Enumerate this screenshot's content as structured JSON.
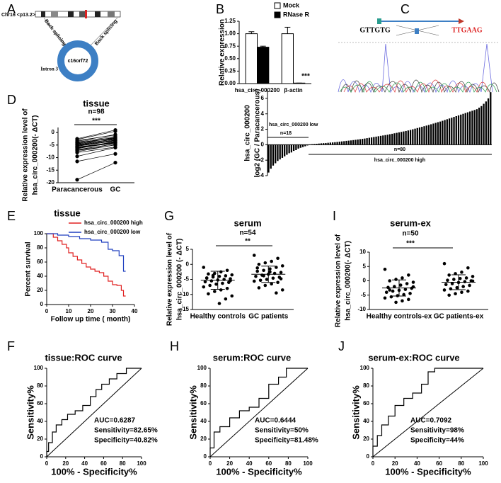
{
  "panel_labels": [
    "A",
    "B",
    "C",
    "D",
    "E",
    "G",
    "I",
    "F",
    "H",
    "J"
  ],
  "diagram_a": {
    "chromosome": "Chr16 <p13.2>",
    "back_splicing": [
      "Back splicing",
      "Back splicing"
    ],
    "intron": "Intron 3",
    "circ_name": "c16orf72"
  },
  "chromatogram_c": {
    "seq_left": "GTTGTG",
    "seq_right": "TTGAAG"
  },
  "chart_data": [
    {
      "type": "bar",
      "ylabel": [
        "Relative expression"
      ],
      "categories": [
        "hsa_circ_000200",
        "β-actin"
      ],
      "series": [
        {
          "name": "Mock",
          "color": "#ffffff",
          "values": [
            1.0,
            1.0
          ],
          "errors": [
            0.04,
            0.13
          ]
        },
        {
          "name": "RNase R",
          "color": "#000000",
          "values": [
            0.73,
            0.01
          ],
          "errors": [
            0.02,
            0
          ]
        }
      ],
      "ylim": [
        0,
        1.25
      ],
      "yticks": [
        {
          "value": 0,
          "label": "0.00"
        },
        {
          "value": 0.25,
          "label": "0.25"
        },
        {
          "value": 0.5,
          "label": "0.50"
        },
        {
          "value": 0.75,
          "label": "0.75"
        },
        {
          "value": 1,
          "label": "1.00"
        },
        {
          "value": 1.25,
          "label": "1.25"
        }
      ],
      "annotations": [
        "***"
      ]
    },
    {
      "type": "paired",
      "title": "tissue",
      "annotations": [
        "n=98",
        "***"
      ],
      "ylabel": [
        "Relative expression level of",
        "hsa_circ_000200(- ΔCT)"
      ],
      "categories": [
        "Paracancerous",
        "GC"
      ],
      "color": "#000000",
      "values": [
        [
          -3.2,
          -4.1,
          -5.0,
          -5.8,
          -6.5,
          -4.4,
          -3.8,
          -7.2,
          -5.5,
          -6.1,
          -4.9,
          -3.5,
          -8.0,
          -5.2,
          -6.8,
          -4.6,
          -2.8,
          -7.6,
          -5.9,
          -4.2,
          -6.3,
          -3.9,
          -5.4,
          -9.5,
          -11.5,
          -18.8,
          -2.5,
          -7.0,
          -4.8,
          -6.0
        ],
        [
          -1.0,
          -2.2,
          -3.1,
          -4.0,
          -3.5,
          -2.8,
          -1.5,
          -5.0,
          -3.3,
          -4.2,
          -2.5,
          -0.8,
          -5.8,
          -3.0,
          -4.6,
          -2.0,
          0.5,
          -4.9,
          -3.8,
          -1.9,
          -4.1,
          -2.4,
          -3.2,
          -6.0,
          -8.5,
          -12.0,
          1.0,
          -4.5,
          -2.7,
          -3.9
        ]
      ],
      "ylim": [
        -20,
        2
      ],
      "yticks": [
        0,
        -5,
        -10,
        -15,
        -20
      ]
    },
    {
      "type": "waterfall",
      "ylabel": [
        "hsa_circ_000200",
        "log2 (GC / Paracancerous)"
      ],
      "annotations": [
        "hsa_circ_000200 low",
        "n=18",
        "n=80",
        "hsa_circ_000200 high"
      ],
      "color": "#000000",
      "values": [
        -3.6,
        -3.1,
        -2.7,
        -2.4,
        -2.1,
        -1.9,
        -1.7,
        -1.5,
        -1.3,
        -1.1,
        -1.0,
        -0.8,
        -0.7,
        -0.5,
        -0.4,
        -0.3,
        -0.2,
        -0.1,
        0.05,
        0.08,
        0.1,
        0.12,
        0.15,
        0.18,
        0.2,
        0.22,
        0.25,
        0.28,
        0.3,
        0.33,
        0.36,
        0.4,
        0.43,
        0.46,
        0.5,
        0.53,
        0.56,
        0.6,
        0.64,
        0.68,
        0.72,
        0.76,
        0.8,
        0.85,
        0.9,
        0.95,
        1.0,
        1.05,
        1.1,
        1.15,
        1.2,
        1.25,
        1.3,
        1.36,
        1.42,
        1.48,
        1.54,
        1.6,
        1.66,
        1.72,
        1.78,
        1.85,
        1.92,
        2.0,
        2.08,
        2.16,
        2.24,
        2.32,
        2.4,
        2.48,
        2.56,
        2.65,
        2.74,
        2.83,
        2.92,
        3.0,
        3.1,
        3.2,
        3.3,
        3.4,
        3.5,
        3.6,
        3.7,
        3.8,
        3.9,
        4.0,
        4.1,
        4.2,
        4.3,
        4.4,
        4.5,
        4.6,
        4.8,
        5.0,
        5.3,
        5.6,
        6.0,
        6.8
      ],
      "ylim": [
        -4,
        7
      ],
      "yticks": [
        -4,
        -2,
        0,
        2,
        4,
        6
      ]
    },
    {
      "type": "line",
      "title": "tissue",
      "ylabel": [
        "Percent survival"
      ],
      "xlabel": "Follow up time ( month)",
      "series": [
        {
          "name": "hsa_circ_000200 high",
          "color": "#e02020",
          "x": [
            0,
            3,
            3,
            5,
            5,
            7,
            7,
            9,
            9,
            10,
            10,
            12,
            12,
            14,
            14,
            16,
            16,
            18,
            18,
            20,
            20,
            22,
            22,
            24,
            24,
            26,
            26,
            28,
            28,
            30,
            30,
            32,
            32,
            34,
            34,
            35,
            35,
            36
          ],
          "values": [
            100,
            100,
            95,
            95,
            90,
            90,
            85,
            85,
            80,
            80,
            73,
            73,
            68,
            68,
            63,
            63,
            58,
            58,
            53,
            53,
            50,
            50,
            47,
            47,
            45,
            45,
            40,
            40,
            33,
            33,
            28,
            28,
            27,
            27,
            20,
            20,
            12,
            12
          ]
        },
        {
          "name": "hsa_circ_000200 low",
          "color": "#1f3fbf",
          "x": [
            0,
            5,
            5,
            10,
            10,
            15,
            15,
            20,
            20,
            25,
            25,
            28,
            28,
            30,
            30,
            33,
            33,
            35,
            35,
            36
          ],
          "values": [
            100,
            100,
            98,
            98,
            96,
            96,
            93,
            93,
            91,
            91,
            88,
            88,
            78,
            78,
            76,
            76,
            69,
            69,
            47,
            47
          ]
        }
      ],
      "xlim": [
        0,
        40
      ],
      "xticks": [
        0,
        10,
        20,
        30,
        40
      ],
      "ylim": [
        0,
        100
      ],
      "yticks": [
        0,
        20,
        40,
        60,
        80,
        100
      ]
    },
    {
      "type": "strip",
      "title": "serum",
      "annotations": [
        "n=54",
        "**"
      ],
      "ylabel": [
        "Relative expression level of",
        "hsa_circ_000200 (- ΔCT)"
      ],
      "categories": [
        "Healthy controls",
        "GC patients"
      ],
      "color": "#000000",
      "values": [
        [
          -1,
          -2,
          -2.5,
          -3,
          -3.2,
          -3.5,
          -3.8,
          -4,
          -4.2,
          -4.5,
          -4.8,
          -5,
          -5.2,
          -5.5,
          -5.8,
          -6,
          -6.3,
          -6.6,
          -7,
          -7.5,
          -8,
          -8.5,
          -9,
          -9.8,
          -10.5,
          -11.5,
          -13,
          -3.7,
          -4.6,
          -5.4
        ],
        [
          3,
          2,
          1,
          0.5,
          0,
          -0.5,
          -1,
          -1.5,
          -2,
          -2.3,
          -2.7,
          -3,
          -3.3,
          -3.6,
          -4,
          -4.3,
          -4.6,
          -5,
          -5.3,
          -5.6,
          -6,
          -6.5,
          -7,
          -7.8,
          -8.5,
          -9.5,
          -2.5,
          -3.8,
          -1.2,
          -4.8
        ]
      ],
      "means": [
        -5.3,
        -3.3
      ],
      "sd": [
        3,
        2.7
      ],
      "ylim": [
        -15,
        5
      ],
      "yticks": [
        5,
        0,
        -5,
        -10,
        -15
      ]
    },
    {
      "type": "strip",
      "title": "serum-ex",
      "annotations": [
        "n=50",
        "***"
      ],
      "ylabel": [
        "Relative expression level of",
        "hsa_circ_000200(- ΔCT)"
      ],
      "categories": [
        "Healthy controls-ex",
        "GC patients-ex"
      ],
      "color": "#000000",
      "values": [
        [
          4,
          2,
          1,
          0.5,
          0,
          -0.5,
          -1,
          -1.5,
          -2,
          -2.3,
          -2.6,
          -3,
          -3.3,
          -3.6,
          -4,
          -4.4,
          -4.8,
          -5.2,
          -5.6,
          -6,
          -6.5,
          -7,
          -7.5,
          -3.2,
          -2.1
        ],
        [
          6,
          4.5,
          3,
          2.5,
          2,
          1.5,
          1,
          0.8,
          0.5,
          0.2,
          0,
          -0.3,
          -0.6,
          -1,
          -1.3,
          -1.6,
          -2,
          -2.4,
          -2.8,
          -3.2,
          -3.6,
          -4,
          -4.5,
          -5,
          -0.1
        ]
      ],
      "means": [
        -2.5,
        -0.5
      ],
      "sd": [
        2.8,
        2.6
      ],
      "ylim": [
        -10,
        10
      ],
      "yticks": [
        10,
        5,
        0,
        -5,
        -10
      ]
    },
    {
      "type": "line",
      "title": "tissue:ROC curve",
      "ylabel": [
        "Sensitivity%"
      ],
      "xlabel": "100% - Specificity%",
      "reference_line": true,
      "annotations": [
        "AUC=0.6287",
        "Sensitivity=82.65%",
        "Specificity=40.82%"
      ],
      "series": [
        {
          "color": "#000000",
          "x": [
            0,
            0,
            2,
            2,
            6,
            6,
            10,
            10,
            16,
            16,
            22,
            22,
            30,
            30,
            38,
            38,
            46,
            46,
            52,
            52,
            58,
            58,
            66,
            66,
            74,
            74,
            84,
            84,
            100
          ],
          "values": [
            0,
            6,
            6,
            16,
            16,
            28,
            28,
            36,
            36,
            42,
            42,
            48,
            48,
            52,
            52,
            58,
            58,
            68,
            68,
            76,
            76,
            82,
            82,
            88,
            88,
            94,
            94,
            100,
            100
          ]
        }
      ],
      "xlim": [
        0,
        100
      ],
      "xticks": [
        0,
        20,
        40,
        60,
        80,
        100
      ],
      "ylim": [
        0,
        100
      ],
      "yticks": [
        0,
        20,
        40,
        60,
        80,
        100
      ]
    },
    {
      "type": "line",
      "title": "serum:ROC curve",
      "ylabel": [
        "Sensitivity%"
      ],
      "xlabel": "100% - Specificity%",
      "reference_line": true,
      "annotations": [
        "AUC=0.6444",
        "Sensitivity=50%",
        "Specificity=81.48%"
      ],
      "series": [
        {
          "color": "#000000",
          "x": [
            0,
            0,
            4,
            4,
            10,
            10,
            20,
            20,
            30,
            30,
            40,
            40,
            50,
            50,
            60,
            60,
            70,
            70,
            78,
            78,
            100
          ],
          "values": [
            0,
            10,
            10,
            28,
            28,
            34,
            34,
            44,
            44,
            52,
            52,
            56,
            56,
            66,
            66,
            82,
            82,
            90,
            90,
            100,
            100
          ]
        }
      ],
      "xlim": [
        0,
        100
      ],
      "xticks": [
        0,
        20,
        40,
        60,
        80,
        100
      ],
      "ylim": [
        0,
        100
      ],
      "yticks": [
        0,
        20,
        40,
        60,
        80,
        100
      ]
    },
    {
      "type": "line",
      "title": "serum-ex:ROC curve",
      "ylabel": [
        "Sensitivity%"
      ],
      "xlabel": "100% - Specificity%",
      "reference_line": true,
      "annotations": [
        "AUC=0.7092",
        "Sensitivity=98%",
        "Specificity=44%"
      ],
      "series": [
        {
          "color": "#000000",
          "x": [
            0,
            0,
            4,
            4,
            8,
            8,
            14,
            14,
            20,
            20,
            28,
            28,
            36,
            36,
            44,
            44,
            50,
            50,
            56,
            56,
            100
          ],
          "values": [
            0,
            12,
            12,
            24,
            24,
            36,
            36,
            46,
            46,
            58,
            58,
            66,
            66,
            72,
            72,
            82,
            82,
            96,
            96,
            100,
            100
          ]
        }
      ],
      "xlim": [
        0,
        100
      ],
      "xticks": [
        0,
        20,
        40,
        60,
        80,
        100
      ],
      "ylim": [
        0,
        100
      ],
      "yticks": [
        0,
        20,
        40,
        60,
        80,
        100
      ]
    }
  ]
}
